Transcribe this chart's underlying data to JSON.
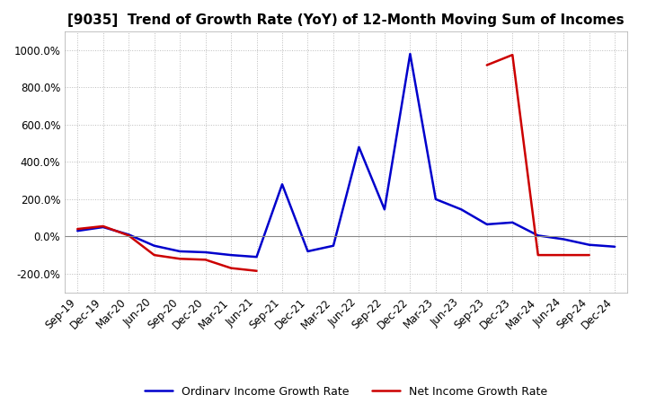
{
  "title": "[9035]  Trend of Growth Rate (YoY) of 12-Month Moving Sum of Incomes",
  "x_labels": [
    "Sep-19",
    "Dec-19",
    "Mar-20",
    "Jun-20",
    "Sep-20",
    "Dec-20",
    "Mar-21",
    "Jun-21",
    "Sep-21",
    "Dec-21",
    "Mar-22",
    "Jun-22",
    "Sep-22",
    "Dec-22",
    "Mar-23",
    "Jun-23",
    "Sep-23",
    "Dec-23",
    "Mar-24",
    "Jun-24",
    "Sep-24",
    "Dec-24"
  ],
  "ordinary_income": [
    30,
    50,
    10,
    -50,
    -80,
    -85,
    -100,
    -110,
    280,
    -80,
    -50,
    480,
    145,
    980,
    200,
    145,
    65,
    75,
    5,
    -15,
    -45,
    -55
  ],
  "net_income_seg1_x": [
    0,
    1,
    2,
    3,
    4,
    5,
    6,
    7
  ],
  "net_income_seg1_y": [
    40,
    55,
    5,
    -100,
    -120,
    -125,
    -170,
    -185
  ],
  "net_income_seg2_x": [
    16,
    17,
    18,
    19,
    20
  ],
  "net_income_seg2_y": [
    920,
    975,
    -100,
    -100,
    -100
  ],
  "ylim": [
    -300,
    1100
  ],
  "yticks": [
    -200,
    0,
    200,
    400,
    600,
    800,
    1000
  ],
  "line_color_ordinary": "#0000CC",
  "line_color_net": "#CC0000",
  "background_color": "#FFFFFF",
  "grid_color": "#BBBBBB",
  "legend_ordinary": "Ordinary Income Growth Rate",
  "legend_net": "Net Income Growth Rate",
  "title_fontsize": 11,
  "axis_fontsize": 8.5
}
